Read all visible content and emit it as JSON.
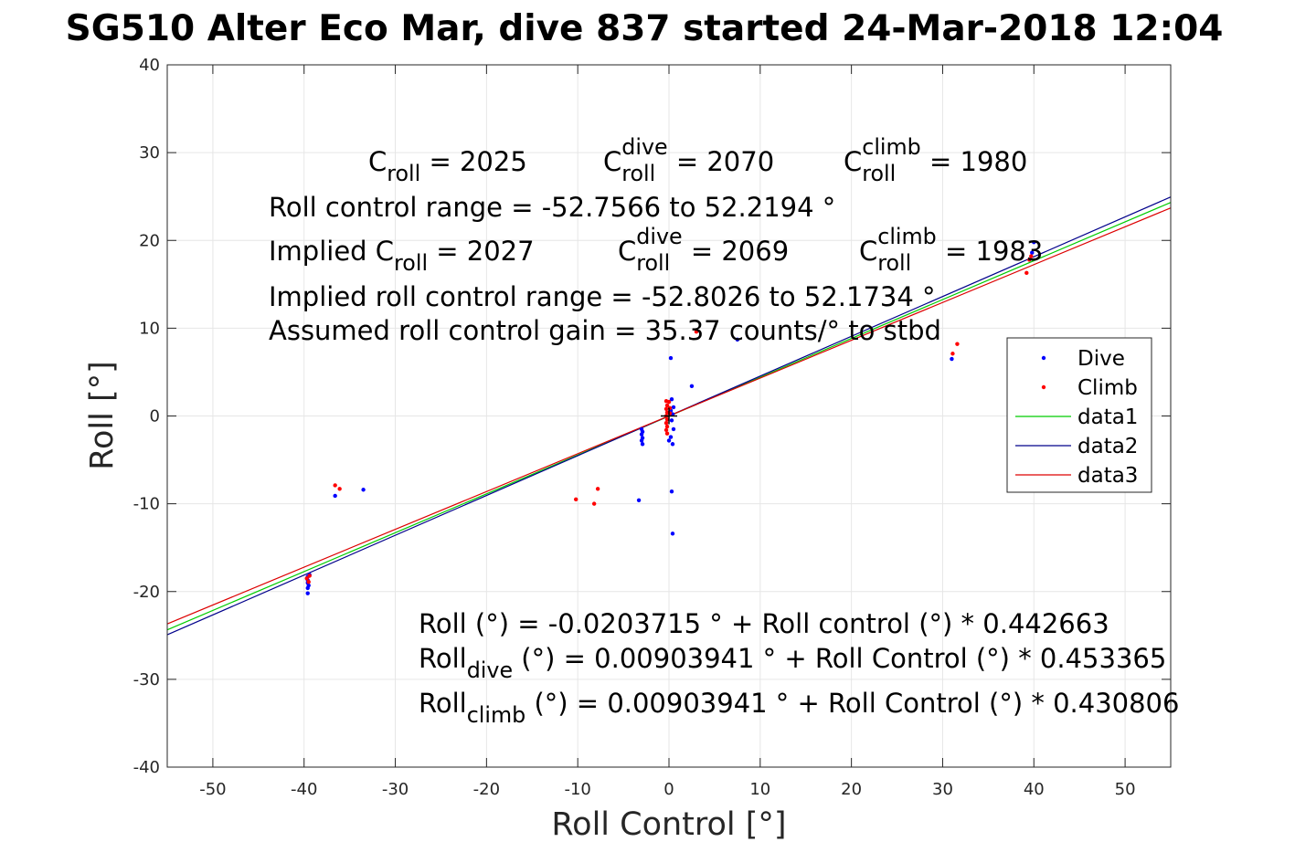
{
  "chart_data": {
    "type": "scatter",
    "title": "SG510 Alter Eco Mar, dive 837 started 24-Mar-2018 12:04",
    "xlabel": "Roll Control [°]",
    "ylabel": "Roll [°]",
    "xlim": [
      -55,
      55
    ],
    "ylim": [
      -40,
      40
    ],
    "xticks": [
      -50,
      -40,
      -30,
      -20,
      -10,
      0,
      10,
      20,
      30,
      40,
      50
    ],
    "yticks": [
      -40,
      -30,
      -20,
      -10,
      0,
      10,
      20,
      30,
      40
    ],
    "grid": true,
    "legend_position": "right",
    "colors": {
      "dive": "#0000ff",
      "climb": "#ff0000",
      "data1": "#00cc00",
      "data2": "#00008b",
      "data3": "#dd0000"
    },
    "series": [
      {
        "name": "Dive",
        "kind": "points",
        "color": "#0000ff",
        "points": [
          [
            -39.6,
            -18.3
          ],
          [
            -39.6,
            -18.7
          ],
          [
            -39.6,
            -19.0
          ],
          [
            -39.5,
            -19.3
          ],
          [
            -39.6,
            -19.6
          ],
          [
            -39.6,
            -20.2
          ],
          [
            -39.4,
            -18.1
          ],
          [
            -36.6,
            -9.1
          ],
          [
            -33.5,
            -8.4
          ],
          [
            -3.3,
            -9.6
          ],
          [
            -3.0,
            -1.5
          ],
          [
            -2.9,
            -1.8
          ],
          [
            -3.0,
            -2.1
          ],
          [
            -2.9,
            -2.5
          ],
          [
            -3.0,
            -2.8
          ],
          [
            -2.9,
            -3.2
          ],
          [
            0.2,
            6.6
          ],
          [
            2.5,
            3.4
          ],
          [
            0.3,
            -8.6
          ],
          [
            0.4,
            -13.4
          ],
          [
            0.4,
            -3.2
          ],
          [
            0.2,
            -2.4
          ],
          [
            0.0,
            -2.8
          ],
          [
            0.3,
            1.9
          ],
          [
            0.5,
            1.0
          ],
          [
            0.2,
            0.6
          ],
          [
            0.4,
            0.2
          ],
          [
            0.3,
            -0.5
          ],
          [
            0.5,
            -1.5
          ],
          [
            7.5,
            8.7
          ],
          [
            31.0,
            6.5
          ],
          [
            40.0,
            19.8
          ],
          [
            39.8,
            18.6
          ]
        ]
      },
      {
        "name": "Climb",
        "kind": "points",
        "color": "#ff0000",
        "points": [
          [
            -39.4,
            -18.2
          ],
          [
            -39.7,
            -18.5
          ],
          [
            -39.5,
            -18.9
          ],
          [
            -36.6,
            -7.9
          ],
          [
            -36.1,
            -8.3
          ],
          [
            -10.2,
            -9.5
          ],
          [
            -8.2,
            -10.0
          ],
          [
            -7.8,
            -8.3
          ],
          [
            -0.3,
            1.7
          ],
          [
            -0.2,
            1.2
          ],
          [
            -0.3,
            0.8
          ],
          [
            -0.2,
            0.4
          ],
          [
            -0.3,
            0.0
          ],
          [
            -0.2,
            -0.4
          ],
          [
            -0.3,
            -0.8
          ],
          [
            -0.2,
            -1.2
          ],
          [
            -0.3,
            -1.6
          ],
          [
            -0.2,
            -2.0
          ],
          [
            0.0,
            1.6
          ],
          [
            0.1,
            0.9
          ],
          [
            0.1,
            0.3
          ],
          [
            3.0,
            9.6
          ],
          [
            31.1,
            7.1
          ],
          [
            31.6,
            8.2
          ],
          [
            39.2,
            16.3
          ],
          [
            39.7,
            18.2
          ],
          [
            39.5,
            17.8
          ]
        ]
      },
      {
        "name": "data1",
        "kind": "line",
        "color": "#00cc00",
        "intercept": -0.0203715,
        "slope": 0.442663,
        "x": [
          -55,
          55
        ]
      },
      {
        "name": "data2",
        "kind": "line",
        "color": "#00008b",
        "intercept": 0.00903941,
        "slope": 0.453365,
        "x": [
          -55,
          55
        ]
      },
      {
        "name": "data3",
        "kind": "line",
        "color": "#dd0000",
        "intercept": 0.00903941,
        "slope": 0.430806,
        "x": [
          -55,
          55
        ]
      }
    ],
    "annotations": {
      "c_line": [
        {
          "main": "C",
          "sub": "roll",
          "rest": " = 2025"
        },
        {
          "main": "C",
          "sup": "dive",
          "sub": "roll",
          "rest": " = 2070"
        },
        {
          "main": "C",
          "sup": "climb",
          "sub": "roll",
          "rest": " = 1980"
        }
      ],
      "range": "Roll control range = -52.7566 to 52.2194 °",
      "implied_line": [
        {
          "main": "Implied C",
          "sub": "roll",
          "rest": " = 2027"
        },
        {
          "main": "C",
          "sup": "dive",
          "sub": "roll",
          "rest": " = 2069"
        },
        {
          "main": "C",
          "sup": "climb",
          "sub": "roll",
          "rest": " = 1983"
        }
      ],
      "implied_range": "Implied roll control range = -52.8026 to 52.1734 °",
      "gain": "Assumed roll control gain = 35.37 counts/° to stbd",
      "fits": [
        {
          "main": "Roll",
          "sub": "",
          "rest": " (°) = -0.0203715 ° + Roll control (°) * 0.442663"
        },
        {
          "main": "Roll",
          "sub": "dive",
          "rest": " (°) = 0.00903941 ° + Roll Control (°) * 0.453365"
        },
        {
          "main": "Roll",
          "sub": "climb",
          "rest": " (°) = 0.00903941 ° + Roll Control (°) * 0.430806"
        }
      ]
    }
  }
}
